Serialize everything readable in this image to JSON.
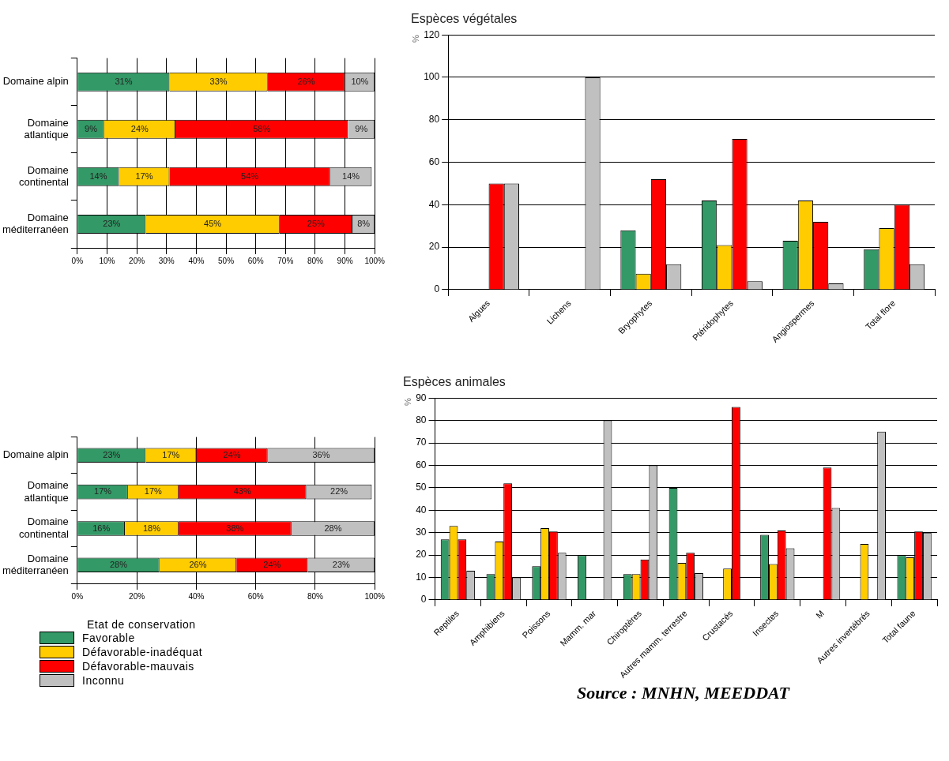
{
  "chart_data": [
    {
      "type": "bar",
      "orientation": "horizontal",
      "stacked": true,
      "grid": "x",
      "categories": [
        "Domaine alpin",
        "Domaine atlantique",
        "Domaine continental",
        "Domaine méditerranéen"
      ],
      "xlim": [
        0,
        100
      ],
      "xticks": [
        {
          "value": 0,
          "label": "0%"
        },
        {
          "value": 10,
          "label": "10%"
        },
        {
          "value": 20,
          "label": "20%"
        },
        {
          "value": 30,
          "label": "30%"
        },
        {
          "value": 40,
          "label": "40%"
        },
        {
          "value": 50,
          "label": "50%"
        },
        {
          "value": 60,
          "label": "60%"
        },
        {
          "value": 70,
          "label": "70%"
        },
        {
          "value": 80,
          "label": "80%"
        },
        {
          "value": 90,
          "label": "90%"
        },
        {
          "value": 100,
          "label": "100%"
        }
      ],
      "series": [
        {
          "color": "#339966",
          "values": [
            31,
            9,
            14,
            23
          ],
          "value_labels": [
            "31%",
            "9%",
            "14%",
            "23%"
          ]
        },
        {
          "color": "#ffcc00",
          "values": [
            33,
            24,
            17,
            45
          ],
          "value_labels": [
            "33%",
            "24%",
            "17%",
            "45%"
          ]
        },
        {
          "color": "#ff0000",
          "values": [
            26,
            58,
            54,
            24.5
          ],
          "value_labels": [
            "26%",
            "58%",
            "54%",
            "25%"
          ]
        },
        {
          "color": "#c0c0c0",
          "values": [
            10,
            9,
            14,
            7.5
          ],
          "value_labels": [
            "10%",
            "9%",
            "14%",
            "8%"
          ]
        }
      ]
    },
    {
      "type": "bar",
      "title": "Espèces végétales",
      "ylabel": "%",
      "grid": "y",
      "categories": [
        "Algues",
        "Lichens",
        "Bryophytes",
        "Ptéridophytes",
        "Angiospermes",
        "Total flore"
      ],
      "ylim": [
        0,
        120
      ],
      "yticks": [
        0,
        20,
        40,
        60,
        80,
        100,
        120
      ],
      "series": [
        {
          "color": "#339966",
          "values": [
            null,
            null,
            28,
            42,
            23,
            19
          ]
        },
        {
          "color": "#ffcc00",
          "values": [
            null,
            null,
            7.5,
            21,
            42,
            29
          ]
        },
        {
          "color": "#ff0000",
          "values": [
            50,
            null,
            52,
            71,
            32,
            40
          ]
        },
        {
          "color": "#c0c0c0",
          "values": [
            50,
            100,
            12,
            4,
            3,
            12
          ]
        }
      ]
    },
    {
      "type": "bar",
      "orientation": "horizontal",
      "stacked": true,
      "grid": "x",
      "legend": "bottom",
      "legend_title": "Etat de conservation",
      "categories": [
        "Domaine alpin",
        "Domaine atlantique",
        "Domaine continental",
        "Domaine méditerranéen"
      ],
      "xlim": [
        0,
        100
      ],
      "xticks": [
        {
          "value": 0,
          "label": "0%"
        },
        {
          "value": 20,
          "label": "20%"
        },
        {
          "value": 40,
          "label": "40%"
        },
        {
          "value": 60,
          "label": "60%"
        },
        {
          "value": 80,
          "label": "80%"
        },
        {
          "value": 100,
          "label": "100%"
        }
      ],
      "series": [
        {
          "name": "Favorable",
          "color": "#339966",
          "values": [
            23,
            17,
            16,
            27.6
          ],
          "value_labels": [
            "23%",
            "17%",
            "16%",
            "28%"
          ]
        },
        {
          "name": "Défavorable-inadéquat",
          "color": "#ffcc00",
          "values": [
            17,
            17,
            18,
            25.9
          ],
          "value_labels": [
            "17%",
            "17%",
            "18%",
            "26%"
          ]
        },
        {
          "name": "Défavorable-mauvais",
          "color": "#ff0000",
          "values": [
            24,
            43,
            38,
            24
          ],
          "value_labels": [
            "24%",
            "43%",
            "38%",
            "24%"
          ]
        },
        {
          "name": "Inconnu",
          "color": "#c0c0c0",
          "values": [
            36,
            22,
            28,
            22.5
          ],
          "value_labels": [
            "36%",
            "22%",
            "28%",
            "23%"
          ]
        }
      ]
    },
    {
      "type": "bar",
      "title": "Espèces animales",
      "ylabel": "%",
      "grid": "y",
      "categories": [
        "Reptiles",
        "Amphibiens",
        "Poissons",
        "Mamm. mar",
        "Chiroptères",
        "Autres mamm. terrestre",
        "Crustacés",
        "Insectes",
        "M",
        "Autres invertébrés",
        "Total faune"
      ],
      "ylim": [
        0,
        90
      ],
      "yticks": [
        0,
        10,
        20,
        30,
        40,
        50,
        60,
        70,
        80,
        90
      ],
      "annotations": [
        "Source : MNHN, MEEDDAT"
      ],
      "series": [
        {
          "color": "#339966",
          "values": [
            27,
            11.5,
            15,
            20,
            11.5,
            50,
            null,
            29,
            null,
            null,
            20
          ]
        },
        {
          "color": "#ffcc00",
          "values": [
            33,
            26,
            32,
            null,
            11.5,
            16.5,
            14,
            16,
            null,
            25,
            19
          ]
        },
        {
          "color": "#ff0000",
          "values": [
            27,
            52,
            30.5,
            null,
            18,
            21,
            86,
            31,
            59,
            null,
            30.5
          ]
        },
        {
          "color": "#c0c0c0",
          "values": [
            13,
            10,
            21,
            80,
            60,
            12,
            null,
            23,
            41,
            75,
            30
          ]
        }
      ]
    }
  ]
}
